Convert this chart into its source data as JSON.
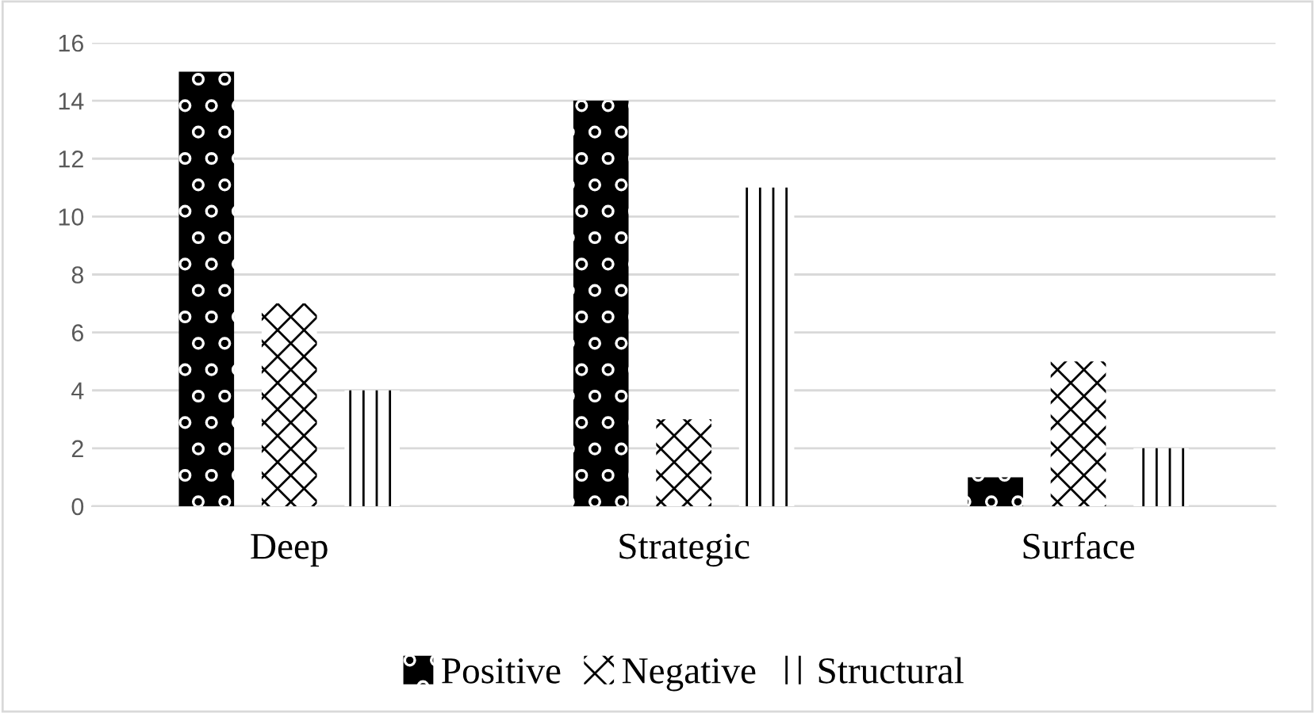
{
  "chart_data": {
    "type": "bar",
    "categories": [
      "Deep",
      "Strategic",
      "Surface"
    ],
    "series": [
      {
        "name": "Positive",
        "color": "#000000",
        "values": [
          15,
          14,
          1
        ]
      },
      {
        "name": "Negative",
        "color": "#000000",
        "values": [
          7,
          3,
          5
        ]
      },
      {
        "name": "Structural",
        "color": "#000000",
        "values": [
          4,
          11,
          2
        ]
      }
    ],
    "ylim": [
      0,
      16
    ],
    "yticks": [
      0,
      2,
      4,
      6,
      8,
      10,
      12,
      14,
      16
    ],
    "grid": "y",
    "legend": "bottom"
  }
}
